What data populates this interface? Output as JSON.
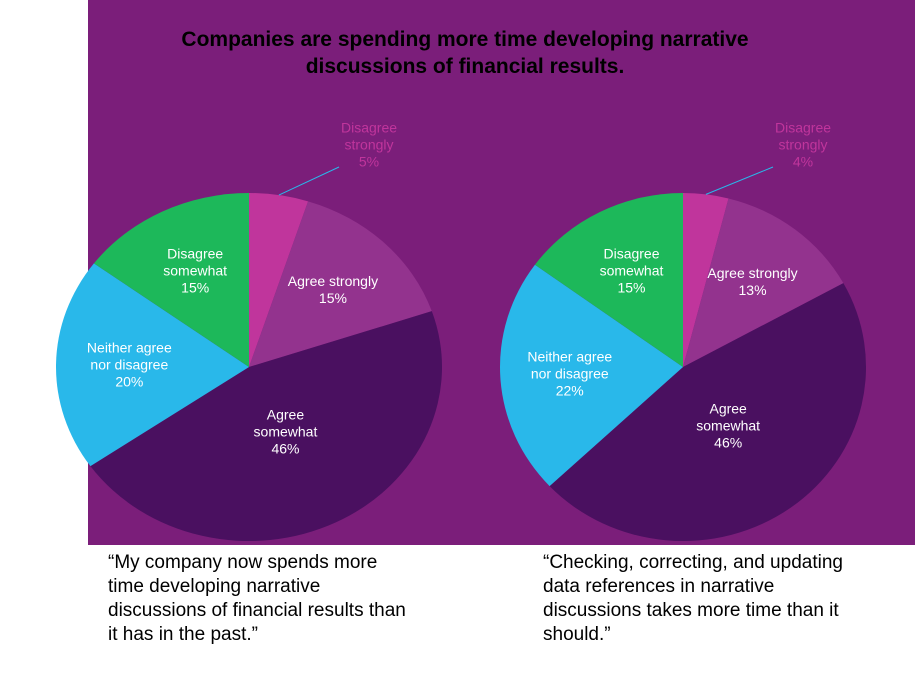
{
  "title": "Companies are spending more time developing narrative discussions of financial results.",
  "chart_data": [
    {
      "type": "pie",
      "categories": [
        "Disagree strongly",
        "Agree strongly",
        "Agree somewhat",
        "Neither agree nor disagree",
        "Disagree somewhat"
      ],
      "values": [
        5,
        15,
        46,
        20,
        15
      ],
      "value_labels": [
        "5%",
        "15%",
        "46%",
        "20%",
        "15%"
      ],
      "colors": [
        "#c0359c",
        "#93338e",
        "#4a1060",
        "#29b8ea",
        "#1db85a"
      ],
      "caption": "“My company now spends more time developing narrative discussions of financial results than it has in the past.”"
    },
    {
      "type": "pie",
      "categories": [
        "Disagree strongly",
        "Agree strongly",
        "Agree somewhat",
        "Neither agree nor disagree",
        "Disagree somewhat"
      ],
      "values": [
        4,
        13,
        46,
        22,
        15
      ],
      "value_labels": [
        "4%",
        "13%",
        "46%",
        "22%",
        "15%"
      ],
      "colors": [
        "#c0359c",
        "#93338e",
        "#4a1060",
        "#29b8ea",
        "#1db85a"
      ],
      "caption": "“Checking, correcting, and updating data references in narrative discussions takes more time than it should.”"
    }
  ]
}
